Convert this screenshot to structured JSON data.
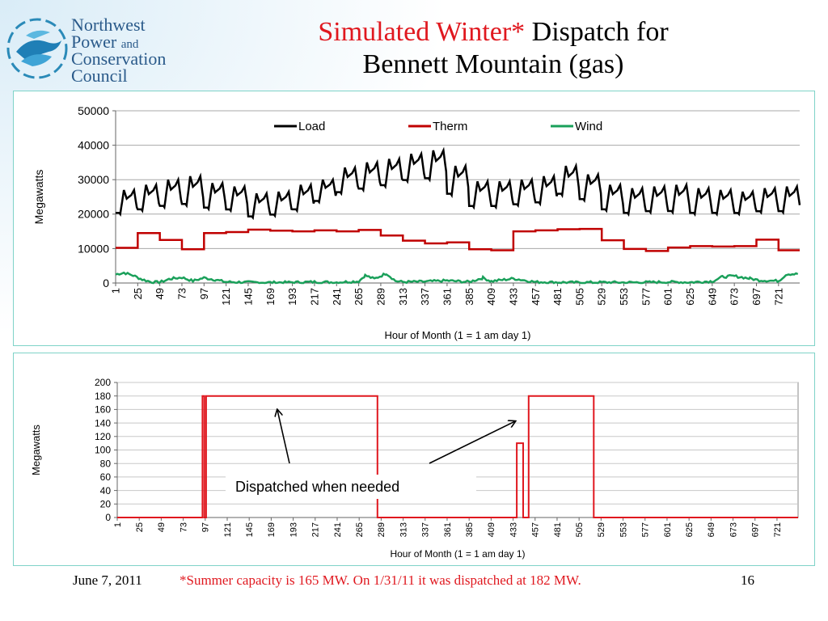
{
  "logo": {
    "line1": "Northwest",
    "line2": "Power",
    "line2_small": "and",
    "line3": "Conservation",
    "line4": "Council"
  },
  "title": {
    "red_part": "Simulated Winter*",
    "rest": " Dispatch for",
    "line2": "Bennett Mountain (gas)"
  },
  "footer": {
    "date": "June 7, 2011",
    "note": "*Summer capacity is 165 MW.  On 1/31/11 it was dispatched at 182 MW.",
    "page": "16"
  },
  "colors": {
    "title_red": "#e0181f",
    "load": "#000000",
    "therm": "#c00000",
    "wind": "#1aa05a",
    "dispatch": "#e0181f",
    "panel_border": "#7fd3c8"
  },
  "chart_data": [
    {
      "type": "line",
      "title": "",
      "xlabel": "Hour of Month (1 = 1 am day 1)",
      "ylabel": "Megawatts",
      "ylim": [
        0,
        50000
      ],
      "yticks": [
        0,
        10000,
        20000,
        30000,
        40000,
        50000
      ],
      "xticks": [
        1,
        25,
        49,
        73,
        97,
        121,
        145,
        169,
        193,
        217,
        241,
        265,
        289,
        313,
        337,
        361,
        385,
        409,
        433,
        457,
        481,
        505,
        529,
        553,
        577,
        601,
        625,
        649,
        673,
        697,
        721
      ],
      "xlim": [
        1,
        744
      ],
      "grid": true,
      "legend": "top",
      "series": [
        {
          "name": "Load",
          "color": "#000000",
          "daily_peaks": [
            {
              "day": 1,
              "low": 20000,
              "high": 27000
            },
            {
              "day": 2,
              "low": 21000,
              "high": 28500
            },
            {
              "day": 3,
              "low": 22000,
              "high": 30000
            },
            {
              "day": 4,
              "low": 22500,
              "high": 31000
            },
            {
              "day": 5,
              "low": 21500,
              "high": 29000
            },
            {
              "day": 6,
              "low": 21000,
              "high": 28000
            },
            {
              "day": 7,
              "low": 19000,
              "high": 26000
            },
            {
              "day": 8,
              "low": 19500,
              "high": 26500
            },
            {
              "day": 9,
              "low": 21000,
              "high": 28500
            },
            {
              "day": 10,
              "low": 23500,
              "high": 30000
            },
            {
              "day": 11,
              "low": 26000,
              "high": 33500
            },
            {
              "day": 12,
              "low": 27000,
              "high": 35000
            },
            {
              "day": 13,
              "low": 28000,
              "high": 36000
            },
            {
              "day": 14,
              "low": 29500,
              "high": 37500
            },
            {
              "day": 15,
              "low": 30000,
              "high": 38500
            },
            {
              "day": 16,
              "low": 25500,
              "high": 34000
            },
            {
              "day": 17,
              "low": 22000,
              "high": 29500
            },
            {
              "day": 18,
              "low": 22000,
              "high": 29500
            },
            {
              "day": 19,
              "low": 22500,
              "high": 30000
            },
            {
              "day": 20,
              "low": 23000,
              "high": 31000
            },
            {
              "day": 21,
              "low": 25500,
              "high": 34000
            },
            {
              "day": 22,
              "low": 24000,
              "high": 31500
            },
            {
              "day": 23,
              "low": 21000,
              "high": 28500
            },
            {
              "day": 24,
              "low": 20000,
              "high": 27500
            },
            {
              "day": 25,
              "low": 20500,
              "high": 28000
            },
            {
              "day": 26,
              "low": 20500,
              "high": 28500
            },
            {
              "day": 27,
              "low": 20000,
              "high": 27500
            },
            {
              "day": 28,
              "low": 20000,
              "high": 27000
            },
            {
              "day": 29,
              "low": 20000,
              "high": 26500
            },
            {
              "day": 30,
              "low": 20500,
              "high": 27500
            },
            {
              "day": 31,
              "low": 20500,
              "high": 28000
            }
          ]
        },
        {
          "name": "Therm",
          "color": "#c00000",
          "steps": [
            [
              1,
              10200
            ],
            [
              25,
              14500
            ],
            [
              49,
              12500
            ],
            [
              73,
              9800
            ],
            [
              97,
              14500
            ],
            [
              121,
              14800
            ],
            [
              145,
              15500
            ],
            [
              169,
              15200
            ],
            [
              193,
              15000
            ],
            [
              217,
              15300
            ],
            [
              241,
              15000
            ],
            [
              265,
              15400
            ],
            [
              289,
              13800
            ],
            [
              313,
              12300
            ],
            [
              337,
              11500
            ],
            [
              361,
              11800
            ],
            [
              385,
              9800
            ],
            [
              409,
              9500
            ],
            [
              433,
              15000
            ],
            [
              457,
              15300
            ],
            [
              481,
              15600
            ],
            [
              505,
              15700
            ],
            [
              529,
              12400
            ],
            [
              553,
              9900
            ],
            [
              577,
              9300
            ],
            [
              601,
              10300
            ],
            [
              625,
              10700
            ],
            [
              649,
              10600
            ],
            [
              673,
              10700
            ],
            [
              697,
              12600
            ],
            [
              721,
              9500
            ],
            [
              744,
              9500
            ]
          ]
        },
        {
          "name": "Wind",
          "color": "#1aa05a",
          "points": [
            [
              1,
              2500
            ],
            [
              10,
              3000
            ],
            [
              20,
              2200
            ],
            [
              30,
              1000
            ],
            [
              40,
              300
            ],
            [
              49,
              200
            ],
            [
              60,
              1200
            ],
            [
              73,
              1600
            ],
            [
              85,
              600
            ],
            [
              97,
              1500
            ],
            [
              110,
              900
            ],
            [
              121,
              300
            ],
            [
              145,
              200
            ],
            [
              169,
              150
            ],
            [
              193,
              200
            ],
            [
              217,
              300
            ],
            [
              241,
              200
            ],
            [
              265,
              500
            ],
            [
              272,
              2200
            ],
            [
              282,
              1200
            ],
            [
              295,
              2800
            ],
            [
              305,
              600
            ],
            [
              313,
              300
            ],
            [
              337,
              400
            ],
            [
              361,
              700
            ],
            [
              385,
              300
            ],
            [
              400,
              1500
            ],
            [
              409,
              500
            ],
            [
              433,
              1300
            ],
            [
              445,
              800
            ],
            [
              457,
              300
            ],
            [
              481,
              200
            ],
            [
              505,
              150
            ],
            [
              529,
              200
            ],
            [
              553,
              150
            ],
            [
              577,
              200
            ],
            [
              601,
              300
            ],
            [
              625,
              200
            ],
            [
              649,
              500
            ],
            [
              660,
              1800
            ],
            [
              673,
              2000
            ],
            [
              690,
              1300
            ],
            [
              700,
              800
            ],
            [
              721,
              600
            ],
            [
              730,
              2600
            ],
            [
              744,
              2600
            ]
          ]
        }
      ]
    },
    {
      "type": "line",
      "title": "",
      "xlabel": "Hour of Month (1 = 1 am day 1)",
      "ylabel": "Megawatts",
      "ylim": [
        0,
        200
      ],
      "yticks": [
        0,
        20,
        40,
        60,
        80,
        100,
        120,
        140,
        160,
        180,
        200
      ],
      "xticks": [
        1,
        25,
        49,
        73,
        97,
        121,
        145,
        169,
        193,
        217,
        241,
        265,
        289,
        313,
        337,
        361,
        385,
        409,
        433,
        457,
        481,
        505,
        529,
        553,
        577,
        601,
        625,
        649,
        673,
        697,
        721
      ],
      "xlim": [
        1,
        744
      ],
      "grid": true,
      "series": [
        {
          "name": "",
          "color": "#e0181f",
          "points": [
            [
              1,
              0
            ],
            [
              94,
              0
            ],
            [
              94,
              180
            ],
            [
              96,
              180
            ],
            [
              96,
              0
            ],
            [
              98,
              0
            ],
            [
              98,
              180
            ],
            [
              285,
              180
            ],
            [
              285,
              0
            ],
            [
              437,
              0
            ],
            [
              437,
              110
            ],
            [
              444,
              110
            ],
            [
              444,
              0
            ],
            [
              450,
              0
            ],
            [
              450,
              180
            ],
            [
              521,
              180
            ],
            [
              521,
              0
            ],
            [
              744,
              0
            ]
          ]
        }
      ],
      "annotations": [
        {
          "text": "Dispatched when needed"
        }
      ]
    }
  ]
}
